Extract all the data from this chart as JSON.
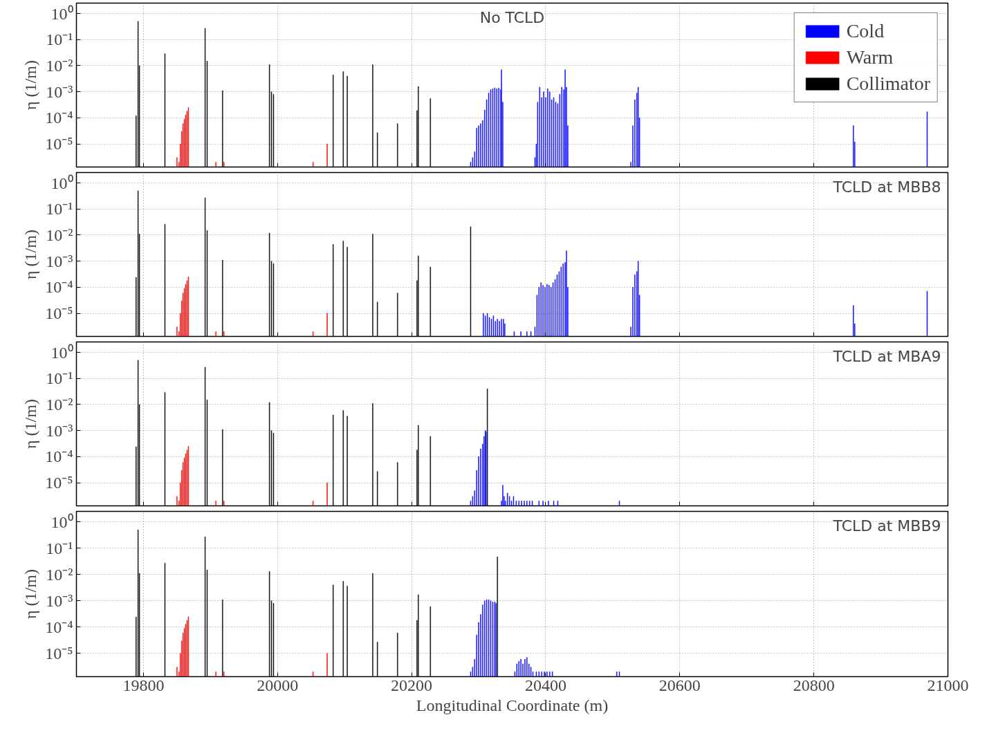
{
  "chart_data": [
    {
      "type": "bar",
      "title": "No TCLD",
      "ylabel": "η (1/m)",
      "xlim": [
        19700,
        21000
      ],
      "ylim": [
        1.3e-06,
        2.5
      ],
      "log": true,
      "grid": true,
      "legend": "top right",
      "tick_labels": "y",
      "xticks": [
        19800,
        20000,
        20200,
        20400,
        20600,
        20800,
        21000
      ],
      "yticks": [
        {
          "value": 1e-05,
          "label": "10⁻⁵"
        },
        {
          "value": 0.0001,
          "label": "10⁻⁴"
        },
        {
          "value": 0.001,
          "label": "10⁻³"
        },
        {
          "value": 0.01,
          "label": "10⁻²"
        },
        {
          "value": 0.1,
          "label": "10⁻¹"
        },
        {
          "value": 1,
          "label": "10⁰"
        }
      ],
      "series": [
        {
          "name": "Cold",
          "color": "#0000ff",
          "x": [
            20288,
            20291,
            20294,
            20297,
            20300,
            20303,
            20306,
            20309,
            20312,
            20315,
            20318,
            20321,
            20324,
            20327,
            20330,
            20333,
            20334,
            20336,
            20384,
            20386,
            20388,
            20391,
            20394,
            20397,
            20400,
            20403,
            20406,
            20409,
            20412,
            20415,
            20418,
            20421,
            20424,
            20427,
            20429,
            20431,
            20433,
            20527,
            20530,
            20533,
            20536,
            20538,
            20540,
            20859,
            20861,
            20969
          ],
          "values": [
            2e-06,
            3e-06,
            5e-06,
            4e-05,
            5e-05,
            6e-05,
            8e-05,
            0.0002,
            0.0005,
            0.0009,
            0.0012,
            0.0013,
            0.0014,
            0.0013,
            0.0014,
            0.0012,
            0.007,
            0.0004,
            3e-06,
            1e-05,
            0.0004,
            0.0015,
            0.0006,
            0.001,
            0.0006,
            0.0013,
            0.001,
            0.0005,
            0.0006,
            0.0004,
            0.00035,
            0.0008,
            0.0015,
            0.0012,
            0.007,
            0.0015,
            5e-05,
            2e-06,
            5e-05,
            0.0005,
            0.0009,
            0.0015,
            0.0001,
            5e-05,
            1.2e-05,
            0.00017
          ]
        },
        {
          "name": "Warm",
          "color": "#ff0000",
          "x": [
            19850,
            19853,
            19855,
            19857,
            19859,
            19861,
            19863,
            19865,
            19867,
            19908,
            19920,
            20053,
            20074
          ],
          "values": [
            3e-06,
            2e-06,
            1e-05,
            3e-05,
            6e-05,
            9e-05,
            0.00013,
            0.00018,
            0.00025,
            2e-06,
            2e-06,
            2e-06,
            1e-05
          ]
        },
        {
          "name": "Collimator",
          "color": "#000000",
          "x": [
            19789,
            19792,
            19794,
            19832,
            19892,
            19895,
            19918,
            19988,
            19991,
            19994,
            20083,
            20098,
            20104,
            20142,
            20149,
            20179,
            20208,
            20210,
            20228
          ],
          "values": [
            0.00012,
            0.5,
            0.01,
            0.029,
            0.27,
            0.015,
            0.0011,
            0.011,
            0.001,
            0.0008,
            0.0044,
            0.0059,
            0.004,
            0.011,
            2.7e-05,
            6e-05,
            0.00019,
            0.0016,
            0.00055
          ]
        }
      ]
    },
    {
      "type": "bar",
      "title": "TCLD at MBB8",
      "ylabel": "η (1/m)",
      "xlim": [
        19700,
        21000
      ],
      "ylim": [
        1.3e-06,
        2.5
      ],
      "log": true,
      "grid": true,
      "tick_labels": "y",
      "xticks": [
        19800,
        20000,
        20200,
        20400,
        20600,
        20800,
        21000
      ],
      "yticks": [
        {
          "value": 1e-05,
          "label": "10⁻⁵"
        },
        {
          "value": 0.0001,
          "label": "10⁻⁴"
        },
        {
          "value": 0.001,
          "label": "10⁻³"
        },
        {
          "value": 0.01,
          "label": "10⁻²"
        },
        {
          "value": 0.1,
          "label": "10⁻¹"
        },
        {
          "value": 1,
          "label": "10⁰"
        }
      ],
      "series": [
        {
          "color": "#0000ff",
          "x": [
            20307,
            20310,
            20313,
            20316,
            20319,
            20322,
            20325,
            20328,
            20331,
            20334,
            20337,
            20339,
            20353,
            20363,
            20372,
            20378,
            20384,
            20387,
            20390,
            20393,
            20396,
            20399,
            20402,
            20405,
            20408,
            20411,
            20414,
            20417,
            20420,
            20423,
            20426,
            20429,
            20431,
            20433,
            20527,
            20530,
            20533,
            20536,
            20538,
            20540,
            20859,
            20861,
            20969
          ],
          "values": [
            1e-05,
            8e-06,
            1e-05,
            7e-06,
            6e-06,
            8e-06,
            5e-06,
            6e-06,
            5e-06,
            6e-06,
            6e-06,
            4e-06,
            2e-06,
            2e-06,
            2e-06,
            2e-06,
            3e-06,
            5e-05,
            0.0001,
            0.00015,
            0.00012,
            0.0001,
            0.00013,
            0.00012,
            0.0001,
            0.00015,
            0.0002,
            0.0003,
            0.0004,
            0.0006,
            0.0008,
            0.0009,
            0.0025,
            0.0001,
            3e-06,
            0.0001,
            0.0003,
            0.0004,
            0.001,
            5e-05,
            2e-05,
            4e-06,
            7e-05
          ]
        },
        {
          "color": "#ff0000",
          "x": [
            19850,
            19853,
            19855,
            19857,
            19859,
            19861,
            19863,
            19865,
            19867,
            19908,
            19920,
            20053,
            20074
          ],
          "values": [
            3e-06,
            2e-06,
            1e-05,
            3e-05,
            6e-05,
            9e-05,
            0.00013,
            0.00018,
            0.00025,
            2e-06,
            2e-06,
            2e-06,
            1e-05
          ]
        },
        {
          "color": "#000000",
          "x": [
            19789,
            19792,
            19794,
            19832,
            19892,
            19895,
            19918,
            19988,
            19991,
            19994,
            20083,
            20098,
            20104,
            20142,
            20149,
            20179,
            20208,
            20210,
            20228,
            20288
          ],
          "values": [
            0.00024,
            0.5,
            0.011,
            0.026,
            0.27,
            0.015,
            0.0011,
            0.012,
            0.001,
            0.0008,
            0.0044,
            0.0059,
            0.0035,
            0.011,
            2.7e-05,
            6e-05,
            0.00018,
            0.0016,
            0.0006,
            0.021
          ]
        }
      ]
    },
    {
      "type": "bar",
      "title": "TCLD at MBA9",
      "ylabel": "η (1/m)",
      "xlim": [
        19700,
        21000
      ],
      "ylim": [
        1.3e-06,
        2.5
      ],
      "log": true,
      "grid": true,
      "tick_labels": "y",
      "xticks": [
        19800,
        20000,
        20200,
        20400,
        20600,
        20800,
        21000
      ],
      "yticks": [
        {
          "value": 1e-05,
          "label": "10⁻⁵"
        },
        {
          "value": 0.0001,
          "label": "10⁻⁴"
        },
        {
          "value": 0.001,
          "label": "10⁻³"
        },
        {
          "value": 0.01,
          "label": "10⁻²"
        },
        {
          "value": 0.1,
          "label": "10⁻¹"
        },
        {
          "value": 1,
          "label": "10⁰"
        }
      ],
      "series": [
        {
          "color": "#0000ff",
          "x": [
            20288,
            20291,
            20294,
            20297,
            20300,
            20303,
            20306,
            20308,
            20310,
            20311,
            20334,
            20336,
            20338,
            20340,
            20343,
            20346,
            20349,
            20352,
            20356,
            20360,
            20364,
            20368,
            20372,
            20376,
            20380,
            20390,
            20396,
            20404,
            20412,
            20418,
            20510
          ],
          "values": [
            2e-06,
            3e-06,
            5e-06,
            3e-05,
            0.0001,
            0.0002,
            0.0003,
            0.0006,
            0.001,
            0.0009,
            2e-06,
            8e-06,
            3e-06,
            2e-06,
            4e-06,
            3e-06,
            2e-06,
            3e-06,
            2e-06,
            2e-06,
            2e-06,
            2e-06,
            2e-06,
            2e-06,
            2e-06,
            2e-06,
            2e-06,
            2e-06,
            2e-06,
            2e-06,
            2e-06
          ]
        },
        {
          "color": "#ff0000",
          "x": [
            19850,
            19853,
            19855,
            19857,
            19859,
            19861,
            19863,
            19865,
            19867,
            19908,
            19920,
            20053,
            20074
          ],
          "values": [
            3e-06,
            2e-06,
            1e-05,
            3e-05,
            6e-05,
            9e-05,
            0.00013,
            0.00018,
            0.00025,
            2e-06,
            2e-06,
            2e-06,
            1e-05
          ]
        },
        {
          "color": "#000000",
          "x": [
            19789,
            19792,
            19794,
            19832,
            19892,
            19895,
            19918,
            19988,
            19991,
            19994,
            20083,
            20098,
            20104,
            20142,
            20149,
            20179,
            20208,
            20210,
            20228,
            20313
          ],
          "values": [
            0.00024,
            0.5,
            0.01,
            0.029,
            0.27,
            0.015,
            0.0011,
            0.012,
            0.001,
            0.0008,
            0.004,
            0.0059,
            0.0036,
            0.011,
            2.7e-05,
            6e-05,
            0.00018,
            0.0016,
            0.0006,
            0.04
          ]
        }
      ]
    },
    {
      "type": "bar",
      "title": "TCLD at MBB9",
      "xlabel": "Longitudinal Coordinate (m)",
      "ylabel": "η (1/m)",
      "xlim": [
        19700,
        21000
      ],
      "ylim": [
        1.3e-06,
        2.5
      ],
      "log": true,
      "grid": true,
      "xticks": [
        19800,
        20000,
        20200,
        20400,
        20600,
        20800,
        21000
      ],
      "yticks": [
        {
          "value": 1e-05,
          "label": "10⁻⁵"
        },
        {
          "value": 0.0001,
          "label": "10⁻⁴"
        },
        {
          "value": 0.001,
          "label": "10⁻³"
        },
        {
          "value": 0.01,
          "label": "10⁻²"
        },
        {
          "value": 0.1,
          "label": "10⁻¹"
        },
        {
          "value": 1,
          "label": "10⁰"
        }
      ],
      "series": [
        {
          "color": "#0000ff",
          "x": [
            20288,
            20291,
            20294,
            20297,
            20300,
            20303,
            20306,
            20309,
            20312,
            20315,
            20318,
            20321,
            20324,
            20326,
            20354,
            20357,
            20360,
            20363,
            20366,
            20369,
            20372,
            20375,
            20378,
            20381,
            20386,
            20390,
            20394,
            20398,
            20402,
            20406,
            20410,
            20506,
            20510
          ],
          "values": [
            2e-06,
            3e-06,
            6e-06,
            5e-05,
            0.00015,
            0.0003,
            0.0007,
            0.001,
            0.0011,
            0.0011,
            0.001,
            0.0009,
            0.0009,
            0.0008,
            2e-06,
            4e-06,
            5e-06,
            6e-06,
            4e-06,
            6e-06,
            7e-06,
            4e-06,
            3e-06,
            2e-06,
            2e-06,
            2e-06,
            2e-06,
            2e-06,
            2e-06,
            2e-06,
            2e-06,
            2e-06,
            2e-06
          ]
        },
        {
          "color": "#ff0000",
          "x": [
            19850,
            19853,
            19855,
            19857,
            19859,
            19861,
            19863,
            19865,
            19867,
            19908,
            19920,
            20053,
            20074
          ],
          "values": [
            3e-06,
            2e-06,
            1e-05,
            3e-05,
            6e-05,
            9e-05,
            0.00013,
            0.00018,
            0.00025,
            2e-06,
            2e-06,
            2e-06,
            1e-05
          ]
        },
        {
          "color": "#000000",
          "x": [
            19789,
            19792,
            19794,
            19832,
            19892,
            19895,
            19918,
            19988,
            19991,
            19994,
            20083,
            20098,
            20104,
            20142,
            20149,
            20179,
            20208,
            20210,
            20228,
            20328
          ],
          "values": [
            0.00024,
            0.5,
            0.011,
            0.027,
            0.27,
            0.015,
            0.0011,
            0.013,
            0.001,
            0.0008,
            0.004,
            0.0055,
            0.0036,
            0.011,
            2.7e-05,
            6e-05,
            0.00018,
            0.0017,
            0.0006,
            0.047
          ]
        }
      ]
    }
  ]
}
